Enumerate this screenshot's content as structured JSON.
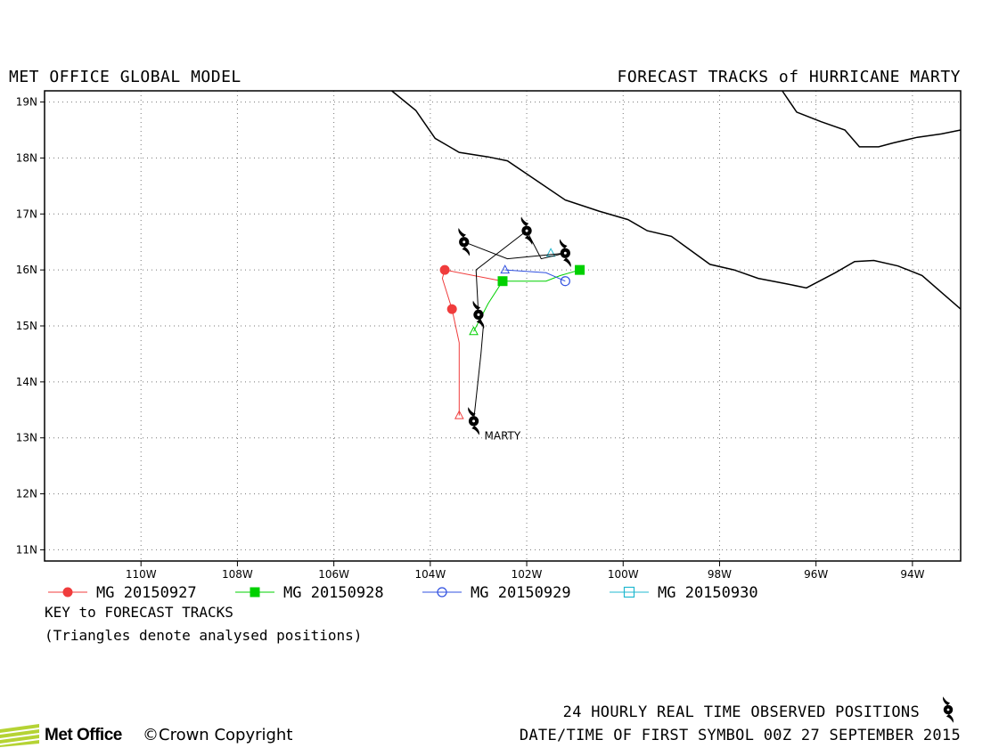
{
  "header": {
    "left_title": "MET OFFICE GLOBAL MODEL",
    "right_title": "FORECAST TRACKS of HURRICANE MARTY"
  },
  "map": {
    "lon_range": [
      -112,
      -93
    ],
    "lat_range": [
      10.8,
      19.2
    ],
    "lon_ticks": [
      {
        "lon": -110,
        "label": "110W"
      },
      {
        "lon": -108,
        "label": "108W"
      },
      {
        "lon": -106,
        "label": "106W"
      },
      {
        "lon": -104,
        "label": "104W"
      },
      {
        "lon": -102,
        "label": "102W"
      },
      {
        "lon": -100,
        "label": "100W"
      },
      {
        "lon": -98,
        "label": "98W"
      },
      {
        "lon": -96,
        "label": "96W"
      },
      {
        "lon": -94,
        "label": "94W"
      }
    ],
    "lat_ticks": [
      {
        "lat": 19,
        "label": "19N"
      },
      {
        "lat": 18,
        "label": "18N"
      },
      {
        "lat": 17,
        "label": "17N"
      },
      {
        "lat": 16,
        "label": "16N"
      },
      {
        "lat": 15,
        "label": "15N"
      },
      {
        "lat": 14,
        "label": "14N"
      },
      {
        "lat": 13,
        "label": "13N"
      },
      {
        "lat": 12,
        "label": "12N"
      },
      {
        "lat": 11,
        "label": "11N"
      }
    ],
    "coastline_main": [
      [
        -104.8,
        19.2
      ],
      [
        -104.3,
        18.85
      ],
      [
        -103.9,
        18.35
      ],
      [
        -103.4,
        18.1
      ],
      [
        -102.8,
        18.02
      ],
      [
        -102.4,
        17.95
      ],
      [
        -101.8,
        17.6
      ],
      [
        -101.2,
        17.25
      ],
      [
        -100.5,
        17.05
      ],
      [
        -99.9,
        16.9
      ],
      [
        -99.5,
        16.7
      ],
      [
        -99.0,
        16.6
      ],
      [
        -98.6,
        16.35
      ],
      [
        -98.2,
        16.1
      ],
      [
        -97.7,
        16.0
      ],
      [
        -97.2,
        15.85
      ],
      [
        -96.6,
        15.75
      ],
      [
        -96.2,
        15.68
      ],
      [
        -95.6,
        15.95
      ],
      [
        -95.2,
        16.15
      ],
      [
        -94.8,
        16.17
      ],
      [
        -94.3,
        16.07
      ],
      [
        -93.8,
        15.9
      ],
      [
        -93.4,
        15.6
      ],
      [
        -93.0,
        15.3
      ]
    ],
    "coastline_gulf": [
      [
        -96.7,
        19.2
      ],
      [
        -96.4,
        18.82
      ],
      [
        -95.9,
        18.65
      ],
      [
        -95.4,
        18.5
      ],
      [
        -95.1,
        18.2
      ],
      [
        -94.7,
        18.2
      ],
      [
        -94.4,
        18.27
      ],
      [
        -93.9,
        18.37
      ],
      [
        -93.4,
        18.43
      ],
      [
        -93.0,
        18.5
      ]
    ],
    "storm_label": {
      "text": "MARTY",
      "lon": -103.1,
      "lat": 13.05
    },
    "observed_positions": [
      {
        "lon": -103.1,
        "lat": 13.3
      },
      {
        "lon": -103.0,
        "lat": 15.2
      },
      {
        "lon": -103.3,
        "lat": 16.5
      },
      {
        "lon": -102.0,
        "lat": 16.7
      },
      {
        "lon": -101.2,
        "lat": 16.3
      }
    ],
    "observed_track": [
      [
        -103.1,
        13.3
      ],
      [
        -102.95,
        14.5
      ],
      [
        -102.9,
        15.0
      ],
      [
        -103.0,
        15.2
      ],
      [
        -103.05,
        16.0
      ],
      [
        -102.0,
        16.7
      ],
      [
        -101.7,
        16.2
      ],
      [
        -101.2,
        16.3
      ],
      [
        -102.4,
        16.2
      ],
      [
        -103.3,
        16.5
      ]
    ],
    "tracks": [
      {
        "name": "MG 20150927",
        "color": "#f03c3c",
        "marker": "circle-filled",
        "analysed": [
          -103.4,
          13.4
        ],
        "points": [
          [
            -103.4,
            13.4
          ],
          [
            -103.4,
            14.7
          ],
          [
            -103.55,
            15.3
          ],
          [
            -103.75,
            15.85
          ],
          [
            -103.7,
            16.0
          ],
          [
            -102.5,
            15.8
          ]
        ],
        "markers": [
          [
            -103.55,
            15.3
          ],
          [
            -103.7,
            16.0
          ]
        ]
      },
      {
        "name": "MG 20150928",
        "color": "#00d000",
        "marker": "square-filled",
        "analysed": [
          -103.1,
          14.9
        ],
        "points": [
          [
            -103.1,
            14.9
          ],
          [
            -102.8,
            15.4
          ],
          [
            -102.5,
            15.8
          ],
          [
            -101.6,
            15.8
          ],
          [
            -101.3,
            15.9
          ],
          [
            -100.9,
            16.0
          ]
        ],
        "markers": [
          [
            -102.5,
            15.8
          ],
          [
            -100.9,
            16.0
          ]
        ]
      },
      {
        "name": "MG 20150929",
        "color": "#3050e0",
        "marker": "circle-open",
        "analysed": [
          -102.45,
          16.0
        ],
        "points": [
          [
            -102.45,
            16.0
          ],
          [
            -101.6,
            15.95
          ],
          [
            -101.2,
            15.8
          ]
        ],
        "markers": [
          [
            -101.2,
            15.8
          ]
        ]
      },
      {
        "name": "MG 20150930",
        "color": "#20b8d0",
        "marker": "square-open",
        "analysed": [
          -101.5,
          16.3
        ],
        "points": [],
        "markers": []
      }
    ]
  },
  "legend": {
    "items": [
      {
        "label": "MG 20150927",
        "color": "#f03c3c",
        "marker": "circle-filled"
      },
      {
        "label": "MG 20150928",
        "color": "#00d000",
        "marker": "square-filled"
      },
      {
        "label": "MG 20150929",
        "color": "#3050e0",
        "marker": "circle-open"
      },
      {
        "label": "MG 20150930",
        "color": "#20b8d0",
        "marker": "square-open"
      }
    ],
    "key_title": "KEY to FORECAST TRACKS",
    "key_note": "(Triangles denote analysed positions)"
  },
  "footer": {
    "observed": "24 HOURLY REAL TIME OBSERVED POSITIONS",
    "date": "DATE/TIME OF FIRST SYMBOL 00Z 27 SEPTEMBER 2015",
    "logo_text": "Met Office",
    "copyright": "©Crown Copyright"
  }
}
